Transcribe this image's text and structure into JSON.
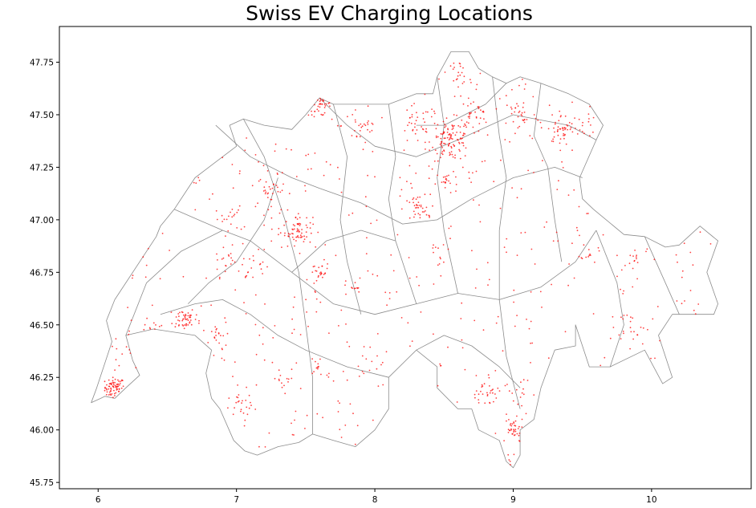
{
  "chart_data": {
    "type": "scatter",
    "title": "Swiss EV Charging Locations",
    "xlabel": "",
    "ylabel": "",
    "xlim": [
      5.72,
      10.72
    ],
    "ylim": [
      45.72,
      47.92
    ],
    "xticks": [
      "6",
      "7",
      "8",
      "9",
      "10"
    ],
    "yticks": [
      "45.75",
      "46.00",
      "46.25",
      "46.50",
      "46.75",
      "47.00",
      "47.25",
      "47.50",
      "47.75"
    ],
    "grid": false,
    "colors": {
      "points": "#ff0000",
      "boundaries": "#8c8c8c",
      "frame": "#000000"
    },
    "outline": [
      [
        5.95,
        46.13
      ],
      [
        6.05,
        46.16
      ],
      [
        6.12,
        46.15
      ],
      [
        6.2,
        46.2
      ],
      [
        6.3,
        46.26
      ],
      [
        6.25,
        46.33
      ],
      [
        6.2,
        46.45
      ],
      [
        6.4,
        46.48
      ],
      [
        6.7,
        46.45
      ],
      [
        6.82,
        46.38
      ],
      [
        6.78,
        46.27
      ],
      [
        6.82,
        46.15
      ],
      [
        6.88,
        46.1
      ],
      [
        6.98,
        45.95
      ],
      [
        7.06,
        45.9
      ],
      [
        7.15,
        45.88
      ],
      [
        7.3,
        45.92
      ],
      [
        7.45,
        45.94
      ],
      [
        7.55,
        45.98
      ],
      [
        7.7,
        45.95
      ],
      [
        7.86,
        45.92
      ],
      [
        8.0,
        46.0
      ],
      [
        8.1,
        46.1
      ],
      [
        8.1,
        46.25
      ],
      [
        8.3,
        46.38
      ],
      [
        8.45,
        46.3
      ],
      [
        8.45,
        46.2
      ],
      [
        8.6,
        46.1
      ],
      [
        8.7,
        46.1
      ],
      [
        8.75,
        46.0
      ],
      [
        8.9,
        45.95
      ],
      [
        8.95,
        45.85
      ],
      [
        9.0,
        45.82
      ],
      [
        9.05,
        45.88
      ],
      [
        9.05,
        46.0
      ],
      [
        9.15,
        46.05
      ],
      [
        9.2,
        46.2
      ],
      [
        9.3,
        46.38
      ],
      [
        9.45,
        46.4
      ],
      [
        9.45,
        46.5
      ],
      [
        9.55,
        46.3
      ],
      [
        9.7,
        46.3
      ],
      [
        9.95,
        46.38
      ],
      [
        10.08,
        46.22
      ],
      [
        10.15,
        46.25
      ],
      [
        10.1,
        46.35
      ],
      [
        10.05,
        46.45
      ],
      [
        10.15,
        46.55
      ],
      [
        10.45,
        46.55
      ],
      [
        10.48,
        46.6
      ],
      [
        10.4,
        46.75
      ],
      [
        10.48,
        46.9
      ],
      [
        10.35,
        46.97
      ],
      [
        10.2,
        46.88
      ],
      [
        10.1,
        46.87
      ],
      [
        9.95,
        46.92
      ],
      [
        9.8,
        46.93
      ],
      [
        9.58,
        47.05
      ],
      [
        9.5,
        47.1
      ],
      [
        9.48,
        47.2
      ],
      [
        9.6,
        47.38
      ],
      [
        9.65,
        47.45
      ],
      [
        9.55,
        47.55
      ],
      [
        9.4,
        47.6
      ],
      [
        9.2,
        47.65
      ],
      [
        9.05,
        47.68
      ],
      [
        8.95,
        47.65
      ],
      [
        8.85,
        47.68
      ],
      [
        8.75,
        47.72
      ],
      [
        8.68,
        47.8
      ],
      [
        8.55,
        47.8
      ],
      [
        8.45,
        47.68
      ],
      [
        8.42,
        47.6
      ],
      [
        8.3,
        47.6
      ],
      [
        8.1,
        47.55
      ],
      [
        7.95,
        47.55
      ],
      [
        7.7,
        47.55
      ],
      [
        7.6,
        47.58
      ],
      [
        7.5,
        47.5
      ],
      [
        7.4,
        47.43
      ],
      [
        7.2,
        47.45
      ],
      [
        7.05,
        47.48
      ],
      [
        6.95,
        47.45
      ],
      [
        7.0,
        47.35
      ],
      [
        6.9,
        47.3
      ],
      [
        6.7,
        47.2
      ],
      [
        6.55,
        47.05
      ],
      [
        6.45,
        46.97
      ],
      [
        6.42,
        46.92
      ],
      [
        6.12,
        46.62
      ],
      [
        6.06,
        46.52
      ],
      [
        6.1,
        46.42
      ],
      [
        5.99,
        46.2
      ],
      [
        5.95,
        46.13
      ]
    ],
    "internal_boundaries": [
      [
        [
          6.85,
          47.45
        ],
        [
          7.1,
          47.3
        ],
        [
          7.4,
          47.2
        ],
        [
          7.6,
          47.15
        ],
        [
          7.9,
          47.08
        ],
        [
          8.2,
          46.98
        ],
        [
          8.45,
          47.0
        ],
        [
          8.7,
          47.1
        ],
        [
          9.0,
          47.2
        ],
        [
          9.3,
          47.25
        ],
        [
          9.5,
          47.2
        ]
      ],
      [
        [
          6.55,
          47.05
        ],
        [
          6.9,
          46.95
        ],
        [
          7.1,
          46.9
        ],
        [
          7.4,
          46.75
        ],
        [
          7.7,
          46.6
        ],
        [
          8.0,
          46.55
        ],
        [
          8.3,
          46.6
        ],
        [
          8.6,
          46.65
        ],
        [
          8.9,
          46.62
        ],
        [
          9.2,
          46.68
        ],
        [
          9.45,
          46.8
        ],
        [
          9.6,
          46.95
        ]
      ],
      [
        [
          6.45,
          46.55
        ],
        [
          6.7,
          46.6
        ],
        [
          6.9,
          46.62
        ],
        [
          7.1,
          46.55
        ],
        [
          7.3,
          46.45
        ],
        [
          7.5,
          46.38
        ],
        [
          7.8,
          46.3
        ],
        [
          8.1,
          46.25
        ]
      ],
      [
        [
          7.05,
          47.48
        ],
        [
          7.2,
          47.3
        ],
        [
          7.35,
          47.0
        ],
        [
          7.45,
          46.75
        ],
        [
          7.5,
          46.5
        ],
        [
          7.55,
          46.25
        ],
        [
          7.55,
          45.98
        ]
      ],
      [
        [
          7.7,
          47.55
        ],
        [
          7.8,
          47.3
        ],
        [
          7.75,
          47.0
        ],
        [
          7.8,
          46.8
        ],
        [
          7.9,
          46.55
        ]
      ],
      [
        [
          8.1,
          47.55
        ],
        [
          8.15,
          47.3
        ],
        [
          8.1,
          47.1
        ],
        [
          8.15,
          46.9
        ],
        [
          8.3,
          46.6
        ]
      ],
      [
        [
          8.45,
          47.68
        ],
        [
          8.5,
          47.45
        ],
        [
          8.45,
          47.2
        ],
        [
          8.5,
          46.95
        ],
        [
          8.6,
          46.65
        ]
      ],
      [
        [
          8.85,
          47.68
        ],
        [
          8.9,
          47.4
        ],
        [
          8.95,
          47.2
        ],
        [
          8.9,
          46.95
        ],
        [
          8.9,
          46.62
        ],
        [
          8.95,
          46.35
        ],
        [
          9.05,
          46.1
        ]
      ],
      [
        [
          9.2,
          47.65
        ],
        [
          9.15,
          47.4
        ],
        [
          9.25,
          47.25
        ],
        [
          9.3,
          47.0
        ],
        [
          9.35,
          46.8
        ]
      ],
      [
        [
          9.6,
          46.95
        ],
        [
          9.75,
          46.7
        ],
        [
          9.8,
          46.5
        ],
        [
          9.7,
          46.3
        ]
      ],
      [
        [
          8.3,
          46.38
        ],
        [
          8.5,
          46.45
        ],
        [
          8.7,
          46.4
        ],
        [
          8.9,
          46.3
        ],
        [
          9.05,
          46.2
        ]
      ],
      [
        [
          6.2,
          46.45
        ],
        [
          6.35,
          46.7
        ],
        [
          6.6,
          46.85
        ],
        [
          6.9,
          46.95
        ]
      ],
      [
        [
          7.6,
          47.58
        ],
        [
          7.8,
          47.45
        ],
        [
          8.0,
          47.35
        ],
        [
          8.3,
          47.3
        ],
        [
          8.6,
          47.38
        ],
        [
          9.0,
          47.5
        ],
        [
          9.4,
          47.45
        ],
        [
          9.6,
          47.38
        ]
      ],
      [
        [
          7.3,
          47.2
        ],
        [
          7.2,
          47.0
        ],
        [
          7.0,
          46.8
        ],
        [
          6.8,
          46.7
        ],
        [
          6.65,
          46.6
        ]
      ],
      [
        [
          8.95,
          47.65
        ],
        [
          8.8,
          47.55
        ],
        [
          8.65,
          47.5
        ],
        [
          8.5,
          47.45
        ],
        [
          8.3,
          47.45
        ]
      ],
      [
        [
          9.95,
          46.92
        ],
        [
          10.1,
          46.7
        ],
        [
          10.2,
          46.55
        ]
      ],
      [
        [
          7.4,
          46.75
        ],
        [
          7.65,
          46.9
        ],
        [
          7.9,
          46.95
        ],
        [
          8.15,
          46.9
        ]
      ]
    ],
    "clusters": [
      {
        "x": 6.12,
        "y": 46.2,
        "n": 70,
        "s": 0.035
      },
      {
        "x": 6.25,
        "y": 46.4,
        "n": 25,
        "s": 0.04
      },
      {
        "x": 6.4,
        "y": 46.47,
        "n": 20,
        "s": 0.04
      },
      {
        "x": 6.62,
        "y": 46.53,
        "n": 45,
        "s": 0.04
      },
      {
        "x": 6.85,
        "y": 46.46,
        "n": 20,
        "s": 0.05
      },
      {
        "x": 6.93,
        "y": 46.8,
        "n": 18,
        "s": 0.05
      },
      {
        "x": 7.45,
        "y": 46.95,
        "n": 60,
        "s": 0.05
      },
      {
        "x": 7.25,
        "y": 47.14,
        "n": 30,
        "s": 0.05
      },
      {
        "x": 7.6,
        "y": 47.55,
        "n": 55,
        "s": 0.04
      },
      {
        "x": 7.9,
        "y": 47.45,
        "n": 25,
        "s": 0.07
      },
      {
        "x": 8.3,
        "y": 47.45,
        "n": 35,
        "s": 0.07
      },
      {
        "x": 8.55,
        "y": 47.38,
        "n": 110,
        "s": 0.07
      },
      {
        "x": 8.6,
        "y": 47.7,
        "n": 20,
        "s": 0.04
      },
      {
        "x": 8.72,
        "y": 47.5,
        "n": 30,
        "s": 0.05
      },
      {
        "x": 8.3,
        "y": 47.05,
        "n": 35,
        "s": 0.05
      },
      {
        "x": 8.52,
        "y": 47.18,
        "n": 20,
        "s": 0.04
      },
      {
        "x": 9.05,
        "y": 47.5,
        "n": 30,
        "s": 0.06
      },
      {
        "x": 9.35,
        "y": 47.43,
        "n": 40,
        "s": 0.05
      },
      {
        "x": 9.5,
        "y": 47.45,
        "n": 15,
        "s": 0.05
      },
      {
        "x": 9.55,
        "y": 46.85,
        "n": 12,
        "s": 0.03
      },
      {
        "x": 9.85,
        "y": 46.5,
        "n": 18,
        "s": 0.05
      },
      {
        "x": 9.85,
        "y": 46.8,
        "n": 10,
        "s": 0.04
      },
      {
        "x": 9.0,
        "y": 46.0,
        "n": 40,
        "s": 0.04
      },
      {
        "x": 8.95,
        "y": 45.86,
        "n": 12,
        "s": 0.03
      },
      {
        "x": 8.8,
        "y": 46.17,
        "n": 25,
        "s": 0.04
      },
      {
        "x": 9.02,
        "y": 46.2,
        "n": 12,
        "s": 0.04
      },
      {
        "x": 7.85,
        "y": 46.68,
        "n": 12,
        "s": 0.03
      },
      {
        "x": 7.6,
        "y": 46.75,
        "n": 20,
        "s": 0.04
      },
      {
        "x": 7.05,
        "y": 46.1,
        "n": 20,
        "s": 0.05
      },
      {
        "x": 7.35,
        "y": 46.23,
        "n": 15,
        "s": 0.05
      },
      {
        "x": 7.6,
        "y": 46.3,
        "n": 15,
        "s": 0.05
      },
      {
        "x": 8.0,
        "y": 46.3,
        "n": 10,
        "s": 0.05
      },
      {
        "x": 6.95,
        "y": 47.0,
        "n": 20,
        "s": 0.05
      },
      {
        "x": 7.15,
        "y": 46.8,
        "n": 15,
        "s": 0.05
      },
      {
        "x": 8.45,
        "y": 46.85,
        "n": 10,
        "s": 0.05
      }
    ],
    "scatter_background_count": 450
  }
}
